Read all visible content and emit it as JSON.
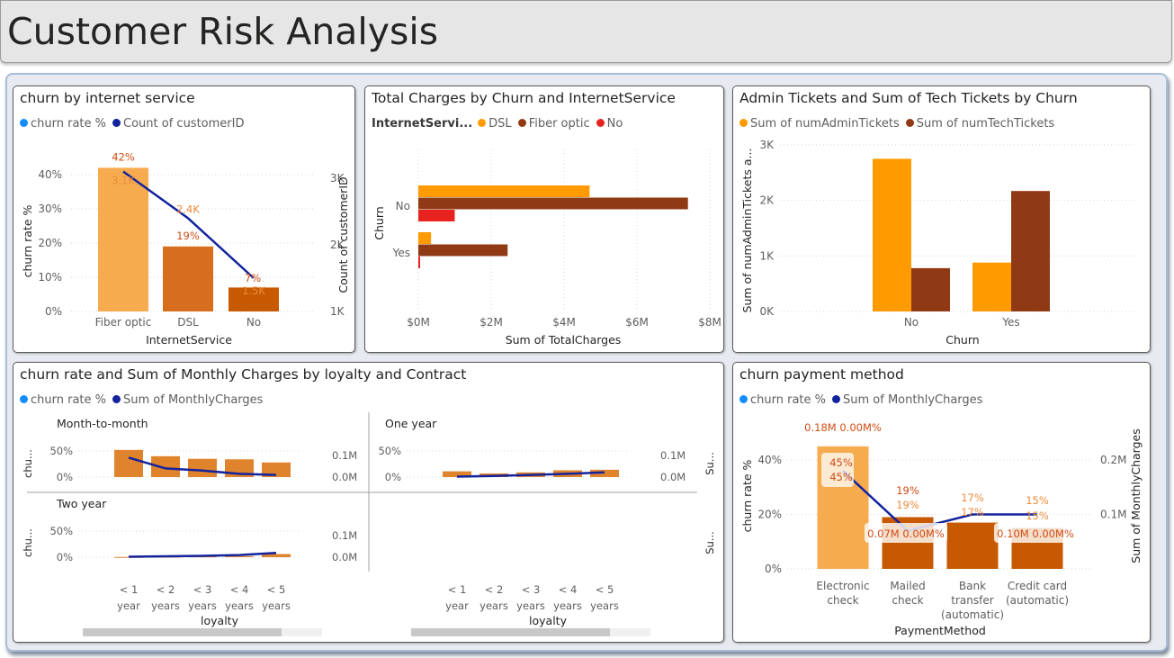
{
  "page": {
    "title": "Customer Risk Analysis"
  },
  "colors": {
    "churn_rate_dot": "#118dff",
    "line": "#12239e",
    "dsl": "#ff9a00",
    "fiber": "#8f3a14",
    "no": "#e8231f",
    "bar_light": "#f7ab4f",
    "bar_mid": "#d66e1e",
    "bar_dark": "#c75a00",
    "label_red": "#d04a12",
    "label_orange": "#ee8a3a"
  },
  "chart_data": [
    {
      "type": "bar",
      "title": "churn by internet service",
      "legend": [
        "churn rate %",
        "Count of customerID"
      ],
      "categories": [
        "Fiber optic",
        "DSL",
        "No"
      ],
      "series": [
        {
          "name": "churn rate %",
          "values": [
            42,
            19,
            7
          ],
          "labels": [
            "42%",
            "19%",
            "7%"
          ]
        },
        {
          "name": "Count of customerID",
          "values": [
            3100,
            2400,
            1500
          ],
          "labels": [
            "3.1K",
            "2.4K",
            "1.5K"
          ]
        }
      ],
      "xlabel": "InternetService",
      "ylabel": "churn rate %",
      "y2label": "Count of customerID",
      "ylim": [
        0,
        45
      ],
      "y2lim": [
        1000,
        3400
      ],
      "yticks": [
        "0%",
        "10%",
        "20%",
        "30%",
        "40%"
      ],
      "y2ticks": [
        "1K",
        "2K",
        "3K"
      ]
    },
    {
      "type": "bar",
      "orientation": "horizontal",
      "title": "Total Charges by Churn and InternetService",
      "legend_title": "InternetServi...",
      "legend": [
        "DSL",
        "Fiber optic",
        "No"
      ],
      "categories": [
        "No",
        "Yes"
      ],
      "series": [
        {
          "name": "DSL",
          "values": [
            4.7,
            0.35
          ]
        },
        {
          "name": "Fiber optic",
          "values": [
            7.4,
            2.45
          ]
        },
        {
          "name": "No",
          "values": [
            1.0,
            0.05
          ]
        }
      ],
      "xlabel": "Sum of TotalCharges",
      "ylabel": "Churn",
      "xlim": [
        0,
        8
      ],
      "xticks": [
        "$0M",
        "$2M",
        "$4M",
        "$6M",
        "$8M"
      ]
    },
    {
      "type": "bar",
      "title": "Admin Tickets and Sum of Tech Tickets by Churn",
      "legend": [
        "Sum of numAdminTickets",
        "Sum of numTechTickets"
      ],
      "categories": [
        "No",
        "Yes"
      ],
      "series": [
        {
          "name": "Sum of numAdminTickets",
          "values": [
            2750,
            880
          ]
        },
        {
          "name": "Sum of numTechTickets",
          "values": [
            780,
            2170
          ]
        }
      ],
      "xlabel": "Churn",
      "ylabel": "Sum of numAdminTickets a...",
      "ylim": [
        0,
        3000
      ],
      "yticks": [
        "0K",
        "1K",
        "2K",
        "3K"
      ]
    },
    {
      "type": "bar",
      "title": "churn rate and Sum of Monthly Charges by loyalty and Contract",
      "legend": [
        "churn rate %",
        "Sum of MonthlyCharges"
      ],
      "categories": [
        "< 1 year",
        "< 2 years",
        "< 3 years",
        "< 4 years",
        "< 5 years"
      ],
      "xlabel": "loyalty",
      "ylabel_short": "chu...",
      "y2label_short": "Su...",
      "yticks": [
        "0%",
        "50%"
      ],
      "y2ticks": [
        "0.0M",
        "0.1M"
      ],
      "panels": [
        {
          "name": "Month-to-month",
          "churn": [
            52,
            40,
            35,
            34,
            28
          ],
          "charges": [
            0.09,
            0.04,
            0.03,
            0.015,
            0.01
          ]
        },
        {
          "name": "One year",
          "churn": [
            11,
            7,
            9,
            13,
            14
          ],
          "charges": [
            0.002,
            0.005,
            0.01,
            0.015,
            0.022
          ]
        },
        {
          "name": "Two year",
          "churn": [
            0.5,
            1,
            1.5,
            2,
            6
          ],
          "charges": [
            0.002,
            0.004,
            0.006,
            0.01,
            0.02
          ]
        }
      ]
    },
    {
      "type": "bar",
      "title": "churn payment method",
      "legend": [
        "churn rate %",
        "Sum of MonthlyCharges"
      ],
      "categories": [
        "Electronic check",
        "Mailed check",
        "Bank transfer (automatic)",
        "Credit card (automatic)"
      ],
      "category_lines": [
        [
          "Electronic",
          "check"
        ],
        [
          "Mailed",
          "check"
        ],
        [
          "Bank",
          "transfer",
          "(automatic)"
        ],
        [
          "Credit card",
          "(automatic)"
        ]
      ],
      "series": [
        {
          "name": "churn rate %",
          "values": [
            45,
            19,
            17,
            15
          ]
        },
        {
          "name": "Sum of MonthlyCharges",
          "values": [
            0.18,
            0.07,
            0.1,
            0.1
          ]
        }
      ],
      "data_labels": {
        "top": [
          "0.18M 0.00M%",
          "19%",
          "17%",
          "15%"
        ],
        "inner": [
          "45%",
          "19%",
          "17%",
          "15%"
        ],
        "inner2": [
          "45%",
          "0.07M 0.00M%",
          "",
          "0.10M 0.00M%"
        ]
      },
      "xlabel": "PaymentMethod",
      "ylabel": "churn rate %",
      "y2label": "Sum of MonthlyCharges",
      "ylim": [
        0,
        50
      ],
      "y2lim": [
        0,
        0.2
      ],
      "yticks": [
        "0%",
        "20%",
        "40%"
      ],
      "y2ticks": [
        "0.1M",
        "0.2M"
      ]
    }
  ]
}
